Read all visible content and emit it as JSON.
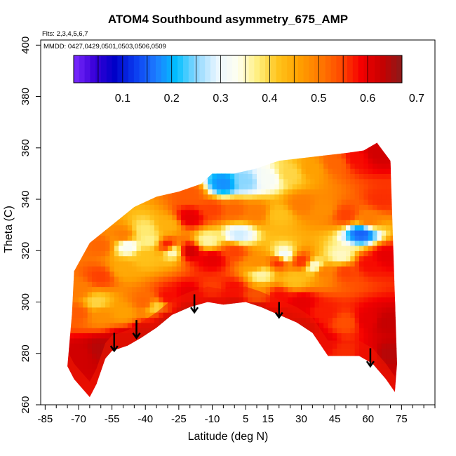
{
  "chart_data": {
    "type": "heatmap",
    "title": "ATOM4 Southbound asymmetry_675_AMP",
    "subtitle_flights": "Flts: 2,3,4,5,6,7",
    "subtitle_dates": "MMDD: 0427,0429,0501,0503,0506,0509",
    "xlabel": "Latitude (deg N)",
    "ylabel": "Theta (C)",
    "xlim": [
      -87,
      90
    ],
    "ylim": [
      260,
      402
    ],
    "x_ticks": [
      -85,
      -70,
      -55,
      -40,
      -25,
      -10,
      5,
      15,
      30,
      45,
      60,
      75
    ],
    "y_ticks": [
      260,
      280,
      300,
      320,
      340,
      360,
      380,
      400
    ],
    "colorbar": {
      "range": [
        0,
        0.67
      ],
      "ticks": [
        0.1,
        0.2,
        0.3,
        0.4,
        0.5,
        0.6,
        0.7
      ],
      "colors": [
        "#7b2bff",
        "#3a00d8",
        "#0000c8",
        "#0a3cf0",
        "#1e7cff",
        "#00bfff",
        "#8fd8ff",
        "#eaf6ff",
        "#fffff0",
        "#ffee7a",
        "#ffc21a",
        "#ffa000",
        "#ff7a00",
        "#ff4a00",
        "#f50000",
        "#c80000",
        "#8b1a1a"
      ]
    },
    "upper_boundary": [
      [
        -72,
        312
      ],
      [
        -65,
        323
      ],
      [
        -55,
        330
      ],
      [
        -45,
        337
      ],
      [
        -35,
        341
      ],
      [
        -25,
        343
      ],
      [
        -15,
        346
      ],
      [
        -10,
        350
      ],
      [
        0,
        350
      ],
      [
        10,
        352
      ],
      [
        20,
        355
      ],
      [
        30,
        356
      ],
      [
        40,
        357
      ],
      [
        50,
        358
      ],
      [
        58,
        359
      ],
      [
        64,
        362
      ],
      [
        70,
        355
      ],
      [
        73,
        276
      ]
    ],
    "lower_boundary": [
      [
        -72,
        312
      ],
      [
        -73,
        295
      ],
      [
        -74,
        285
      ],
      [
        -75,
        275
      ],
      [
        -72,
        270
      ],
      [
        -65,
        263
      ],
      [
        -62,
        268
      ],
      [
        -58,
        278
      ],
      [
        -55,
        281
      ],
      [
        -48,
        283
      ],
      [
        -42,
        286
      ],
      [
        -35,
        290
      ],
      [
        -28,
        295
      ],
      [
        -20,
        298
      ],
      [
        -12,
        300
      ],
      [
        -5,
        299
      ],
      [
        5,
        300
      ],
      [
        12,
        298
      ],
      [
        20,
        295
      ],
      [
        28,
        292
      ],
      [
        35,
        288
      ],
      [
        42,
        279
      ],
      [
        50,
        279
      ],
      [
        56,
        279
      ],
      [
        62,
        276
      ],
      [
        68,
        270
      ],
      [
        72,
        265
      ],
      [
        73,
        276
      ]
    ],
    "cells": [
      [
        -70,
        280,
        0.62
      ],
      [
        -60,
        282,
        0.64
      ],
      [
        -50,
        285,
        0.63
      ],
      [
        -40,
        288,
        0.64
      ],
      [
        -30,
        293,
        0.65
      ],
      [
        -20,
        296,
        0.66
      ],
      [
        -10,
        299,
        0.62
      ],
      [
        0,
        299,
        0.64
      ],
      [
        10,
        297,
        0.66
      ],
      [
        20,
        294,
        0.63
      ],
      [
        30,
        290,
        0.64
      ],
      [
        40,
        284,
        0.6
      ],
      [
        50,
        281,
        0.55
      ],
      [
        60,
        280,
        0.6
      ],
      [
        68,
        280,
        0.64
      ],
      [
        -70,
        296,
        0.53
      ],
      [
        -60,
        295,
        0.48
      ],
      [
        -50,
        296,
        0.46
      ],
      [
        -40,
        300,
        0.52
      ],
      [
        -30,
        302,
        0.58
      ],
      [
        -20,
        303,
        0.6
      ],
      [
        -10,
        305,
        0.55
      ],
      [
        0,
        305,
        0.58
      ],
      [
        10,
        303,
        0.47
      ],
      [
        20,
        302,
        0.58
      ],
      [
        30,
        300,
        0.6
      ],
      [
        40,
        296,
        0.57
      ],
      [
        50,
        292,
        0.54
      ],
      [
        60,
        293,
        0.6
      ],
      [
        68,
        292,
        0.63
      ],
      [
        -70,
        305,
        0.5
      ],
      [
        -60,
        310,
        0.55
      ],
      [
        -50,
        313,
        0.45
      ],
      [
        -40,
        318,
        0.42
      ],
      [
        -30,
        322,
        0.58
      ],
      [
        -20,
        320,
        0.62
      ],
      [
        -10,
        317,
        0.6
      ],
      [
        0,
        320,
        0.55
      ],
      [
        10,
        315,
        0.48
      ],
      [
        20,
        316,
        0.57
      ],
      [
        30,
        316,
        0.56
      ],
      [
        40,
        312,
        0.5
      ],
      [
        50,
        312,
        0.55
      ],
      [
        60,
        315,
        0.58
      ],
      [
        68,
        318,
        0.6
      ],
      [
        -60,
        322,
        0.52
      ],
      [
        -50,
        326,
        0.5
      ],
      [
        -40,
        328,
        0.38
      ],
      [
        -30,
        330,
        0.44
      ],
      [
        -20,
        333,
        0.6
      ],
      [
        -10,
        336,
        0.55
      ],
      [
        0,
        336,
        0.52
      ],
      [
        10,
        335,
        0.5
      ],
      [
        20,
        334,
        0.42
      ],
      [
        30,
        338,
        0.5
      ],
      [
        40,
        336,
        0.48
      ],
      [
        50,
        334,
        0.55
      ],
      [
        60,
        332,
        0.5
      ],
      [
        66,
        340,
        0.56
      ],
      [
        -20,
        342,
        0.53
      ],
      [
        -5,
        346,
        0.18
      ],
      [
        5,
        347,
        0.25
      ],
      [
        15,
        348,
        0.32
      ],
      [
        25,
        350,
        0.4
      ],
      [
        35,
        352,
        0.46
      ],
      [
        45,
        354,
        0.52
      ],
      [
        55,
        356,
        0.58
      ],
      [
        64,
        358,
        0.62
      ],
      [
        -48,
        322,
        0.32
      ],
      [
        -38,
        324,
        0.37
      ],
      [
        -28,
        320,
        0.34
      ],
      [
        -12,
        324,
        0.36
      ],
      [
        2,
        326,
        0.28
      ],
      [
        22,
        318,
        0.3
      ],
      [
        36,
        314,
        0.34
      ],
      [
        48,
        318,
        0.35
      ],
      [
        57,
        327,
        0.15
      ],
      [
        -35,
        298,
        0.4
      ],
      [
        -62,
        300,
        0.4
      ],
      [
        27,
        309,
        0.42
      ],
      [
        12,
        311,
        0.36
      ]
    ],
    "arrows": [
      [
        -54,
        288,
        281
      ],
      [
        -44,
        293,
        286
      ],
      [
        -18,
        303,
        296
      ],
      [
        20,
        300,
        294
      ],
      [
        61,
        282,
        275
      ]
    ]
  }
}
